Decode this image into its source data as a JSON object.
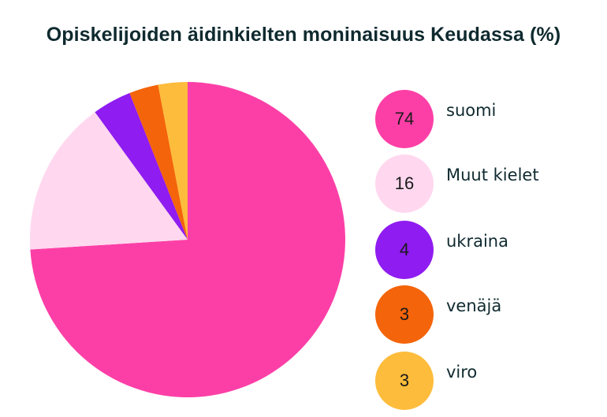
{
  "chart_data": {
    "type": "pie",
    "title": "Opiskelijoiden äidinkielten moninaisuus Keudassa (%)",
    "slices": [
      {
        "label": "suomi",
        "value": 74,
        "color": "#fc3fa7"
      },
      {
        "label": "Muut kielet",
        "value": 16,
        "color": "#ffd8ef"
      },
      {
        "label": "ukraina",
        "value": 4,
        "color": "#8f1cf0"
      },
      {
        "label": "venäjä",
        "value": 3,
        "color": "#f4640a"
      },
      {
        "label": "viro",
        "value": 3,
        "color": "#fdbc3b"
      }
    ],
    "legend_position": "right"
  }
}
